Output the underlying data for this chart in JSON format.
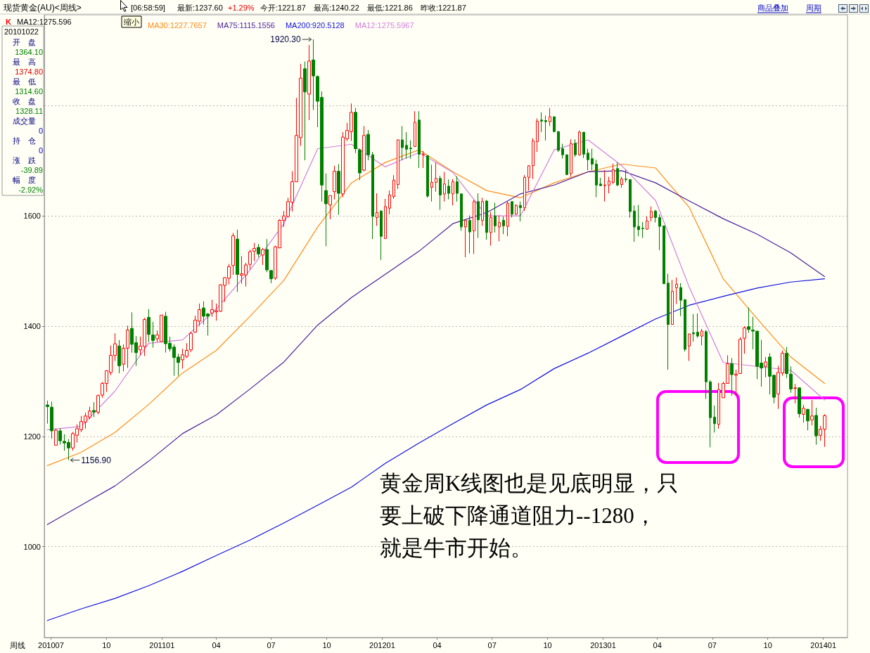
{
  "chart_data": {
    "type": "candlestick",
    "title": "现货黄金(AU)<周线>",
    "xlim": [
      "2010-06-20",
      "2014-02-10"
    ],
    "ylim": [
      835,
      1965
    ],
    "xticks": [
      {
        "value": "2010-07-01",
        "label": "201007"
      },
      {
        "value": "2010-10-01",
        "label": "10"
      },
      {
        "value": "2011-01-01",
        "label": "201101"
      },
      {
        "value": "2011-04-01",
        "label": "04"
      },
      {
        "value": "2011-07-01",
        "label": "07"
      },
      {
        "value": "2011-10-01",
        "label": "10"
      },
      {
        "value": "2012-01-01",
        "label": "201201"
      },
      {
        "value": "2012-04-01",
        "label": "04"
      },
      {
        "value": "2012-07-01",
        "label": "07"
      },
      {
        "value": "2012-10-01",
        "label": "10"
      },
      {
        "value": "2013-01-01",
        "label": "201301"
      },
      {
        "value": "2013-04-01",
        "label": "04"
      },
      {
        "value": "2013-07-01",
        "label": "07"
      },
      {
        "value": "2013-10-01",
        "label": "10"
      },
      {
        "value": "2014-01-01",
        "label": "201401"
      }
    ],
    "yticks": [
      1000,
      1200,
      1400,
      1600,
      {
        "value": 1800,
        "label": null
      }
    ],
    "grid": "y",
    "legend": "top left",
    "annotations": [
      "[06:58:59]",
      "最新:1237.60",
      "+1.29%",
      "今开:1221.87",
      "最高:1240.22",
      "最低:1221.86",
      "昨收:1221.87",
      "商品叠加",
      "周期",
      "MA12:1275.596",
      "缩小",
      "20101022",
      "开　盘",
      "1364.10",
      "最　高",
      "1374.80",
      "最　低",
      "1314.60",
      "收　盘",
      "1328.11",
      "成交量",
      "0",
      "持　仓",
      "0",
      "涨　跌",
      "-39.89",
      "幅　度",
      "-2.92%",
      "周线",
      "黄金周K线图也是见底明显，只",
      "要上破下降通道阻力--1280，",
      "就是牛市开始。",
      {
        "text": "1920.30",
        "x": "2011-09-09",
        "y": 1920.3
      },
      {
        "text": "1156.90",
        "x": "2010-07-30",
        "y": 1156.9
      }
    ],
    "series": [
      {
        "name": "K",
        "colors": [
          "#008000",
          "#008000",
          "#ff0000",
          "#008000",
          "#008000",
          "#008000",
          "#ff0000",
          "#ff0000",
          "#ff0000",
          "#ff0000",
          "#ff0000",
          "#008000",
          "#ff0000",
          "#ff0000",
          "#ff0000",
          "#ff0000",
          "#ff0000",
          "#008000",
          "#ff0000",
          "#ff0000",
          "#008000",
          "#008000",
          "#ff0000",
          "#ff0000",
          "#008000",
          "#008000",
          "#ff0000",
          "#ff0000",
          "#008000",
          "#008000",
          "#008000",
          "#008000",
          "#ff0000",
          "#ff0000",
          "#ff0000",
          "#ff0000",
          "#ff0000",
          "#008000",
          "#008000",
          "#ff0000",
          "#ff0000",
          "#ff0000",
          "#ff0000",
          "#ff0000",
          "#ff0000",
          "#008000",
          "#ff0000",
          "#ff0000",
          "#ff0000",
          "#ff0000",
          "#008000",
          "#ff0000",
          "#008000",
          "#008000",
          "#ff0000",
          "#ff0000",
          "#ff0000",
          "#ff0000",
          "#ff0000",
          "#ff0000",
          "#ff0000",
          "#008000",
          "#ff0000",
          "#008000",
          "#008000",
          "#008000",
          "#008000",
          "#ff0000",
          "#ff0000",
          "#008000",
          "#ff0000",
          "#ff0000",
          "#ff0000",
          "#008000",
          "#008000",
          "#ff0000",
          "#008000",
          "#008000",
          "#ff0000",
          "#008000",
          "#ff0000",
          "#ff0000",
          "#ff0000",
          "#ff0000",
          "#008000",
          "#008000",
          "#008000",
          "#ff0000",
          "#008000",
          "#ff0000",
          "#008000",
          "#ff0000",
          "#ff0000",
          "#008000",
          "#ff0000",
          "#008000",
          "#ff0000",
          "#008000",
          "#008000",
          "#ff0000",
          "#008000",
          "#ff0000",
          "#008000",
          "#ff0000",
          "#008000",
          "#ff0000",
          "#008000",
          "#ff0000",
          "#008000",
          "#ff0000",
          "#008000",
          "#ff0000",
          "#008000",
          "#ff0000",
          "#ff0000",
          "#ff0000",
          "#ff0000",
          "#008000",
          "#008000",
          "#ff0000",
          "#008000",
          "#008000",
          "#008000",
          "#008000",
          "#ff0000",
          "#008000",
          "#ff0000",
          "#008000",
          "#008000",
          "#008000",
          "#008000",
          "#008000",
          "#ff0000",
          "#ff0000",
          "#ff0000",
          "#008000",
          "#ff0000",
          "#008000",
          "#008000",
          "#008000",
          "#008000",
          "#008000",
          "#ff0000",
          "#ff0000",
          "#008000",
          "#008000",
          "#008000",
          "#008000",
          "#ff0000",
          "#ff0000",
          "#008000",
          "#008000",
          "#ff0000",
          "#008000",
          "#008000",
          "#ff0000",
          "#008000",
          "#008000",
          "#008000",
          "#ff0000",
          "#ff0000",
          "#ff0000",
          "#008000",
          "#ff0000",
          "#ff0000",
          "#ff0000",
          "#008000",
          "#008000",
          "#008000",
          "#008000",
          "#ff0000",
          "#008000",
          "#008000",
          "#ff0000",
          "#ff0000",
          "#008000",
          "#008000",
          "#ff0000",
          "#008000",
          "#ff0000",
          "#008000",
          "#ff0000",
          "#008000",
          "#ff0000",
          "#ff0000"
        ],
        "x": [
          "2010-06-25",
          "2010-07-02",
          "2010-07-09",
          "2010-07-16",
          "2010-07-23",
          "2010-07-30",
          "2010-08-06",
          "2010-08-13",
          "2010-08-20",
          "2010-08-27",
          "2010-09-03",
          "2010-09-10",
          "2010-09-17",
          "2010-09-24",
          "2010-10-01",
          "2010-10-08",
          "2010-10-15",
          "2010-10-22",
          "2010-10-29",
          "2010-11-05",
          "2010-11-12",
          "2010-11-19",
          "2010-11-26",
          "2010-12-03",
          "2010-12-10",
          "2010-12-17",
          "2010-12-24",
          "2010-12-31",
          "2011-01-07",
          "2011-01-14",
          "2011-01-21",
          "2011-01-28",
          "2011-02-04",
          "2011-02-11",
          "2011-02-18",
          "2011-02-25",
          "2011-03-04",
          "2011-03-11",
          "2011-03-18",
          "2011-03-25",
          "2011-04-01",
          "2011-04-08",
          "2011-04-15",
          "2011-04-22",
          "2011-04-29",
          "2011-05-06",
          "2011-05-13",
          "2011-05-20",
          "2011-05-27",
          "2011-06-03",
          "2011-06-10",
          "2011-06-17",
          "2011-06-24",
          "2011-07-01",
          "2011-07-08",
          "2011-07-15",
          "2011-07-22",
          "2011-07-29",
          "2011-08-05",
          "2011-08-12",
          "2011-08-19",
          "2011-08-26",
          "2011-09-02",
          "2011-09-09",
          "2011-09-16",
          "2011-09-23",
          "2011-09-30",
          "2011-10-07",
          "2011-10-14",
          "2011-10-21",
          "2011-10-28",
          "2011-11-04",
          "2011-11-11",
          "2011-11-18",
          "2011-11-25",
          "2011-12-02",
          "2011-12-09",
          "2011-12-16",
          "2011-12-23",
          "2011-12-30",
          "2012-01-06",
          "2012-01-13",
          "2012-01-20",
          "2012-01-27",
          "2012-02-03",
          "2012-02-10",
          "2012-02-17",
          "2012-02-24",
          "2012-03-02",
          "2012-03-09",
          "2012-03-16",
          "2012-03-23",
          "2012-03-30",
          "2012-04-06",
          "2012-04-13",
          "2012-04-20",
          "2012-04-27",
          "2012-05-04",
          "2012-05-11",
          "2012-05-18",
          "2012-05-25",
          "2012-06-01",
          "2012-06-08",
          "2012-06-15",
          "2012-06-22",
          "2012-06-29",
          "2012-07-06",
          "2012-07-13",
          "2012-07-20",
          "2012-07-27",
          "2012-08-03",
          "2012-08-10",
          "2012-08-17",
          "2012-08-24",
          "2012-08-31",
          "2012-09-07",
          "2012-09-14",
          "2012-09-21",
          "2012-09-28",
          "2012-10-05",
          "2012-10-12",
          "2012-10-19",
          "2012-10-26",
          "2012-11-02",
          "2012-11-09",
          "2012-11-16",
          "2012-11-23",
          "2012-11-30",
          "2012-12-07",
          "2012-12-14",
          "2012-12-21",
          "2012-12-28",
          "2013-01-04",
          "2013-01-11",
          "2013-01-18",
          "2013-01-25",
          "2013-02-01",
          "2013-02-08",
          "2013-02-15",
          "2013-02-22",
          "2013-03-01",
          "2013-03-08",
          "2013-03-15",
          "2013-03-22",
          "2013-03-29",
          "2013-04-05",
          "2013-04-12",
          "2013-04-19",
          "2013-04-26",
          "2013-05-03",
          "2013-05-10",
          "2013-05-17",
          "2013-05-24",
          "2013-05-31",
          "2013-06-07",
          "2013-06-14",
          "2013-06-21",
          "2013-06-28",
          "2013-07-05",
          "2013-07-12",
          "2013-07-19",
          "2013-07-26",
          "2013-08-02",
          "2013-08-09",
          "2013-08-16",
          "2013-08-23",
          "2013-08-30",
          "2013-09-06",
          "2013-09-13",
          "2013-09-20",
          "2013-09-27",
          "2013-10-04",
          "2013-10-11",
          "2013-10-18",
          "2013-10-25",
          "2013-11-01",
          "2013-11-08",
          "2013-11-15",
          "2013-11-22",
          "2013-11-29",
          "2013-12-06",
          "2013-12-13",
          "2013-12-20",
          "2013-12-27",
          "2014-01-03"
        ],
        "ohlc": [
          [
            1257,
            1265,
            1223,
            1254
          ],
          [
            1253,
            1263,
            1196,
            1210
          ],
          [
            1184,
            1214,
            1184,
            1211
          ],
          [
            1210,
            1215,
            1185,
            1192
          ],
          [
            1191,
            1204,
            1174,
            1188
          ],
          [
            1189,
            1195,
            1156.9,
            1179
          ],
          [
            1179,
            1208,
            1174,
            1205
          ],
          [
            1202,
            1222,
            1189,
            1214
          ],
          [
            1212,
            1237,
            1208,
            1227
          ],
          [
            1226,
            1243,
            1214,
            1237
          ],
          [
            1235,
            1254,
            1231,
            1246
          ],
          [
            1247,
            1262,
            1235,
            1244
          ],
          [
            1244,
            1276,
            1240,
            1274
          ],
          [
            1275,
            1299,
            1270,
            1296
          ],
          [
            1296,
            1320,
            1281,
            1319
          ],
          [
            1316,
            1365,
            1311,
            1347
          ],
          [
            1347,
            1387,
            1337,
            1368
          ],
          [
            1364.1,
            1374.8,
            1314.6,
            1328.11
          ],
          [
            1331,
            1367,
            1318,
            1360
          ],
          [
            1360,
            1401,
            1324,
            1393
          ],
          [
            1396,
            1425,
            1352,
            1367
          ],
          [
            1370,
            1382,
            1328,
            1352
          ],
          [
            1357,
            1381,
            1347,
            1364
          ],
          [
            1363,
            1415,
            1346,
            1412
          ],
          [
            1416,
            1431,
            1371,
            1385
          ],
          [
            1384,
            1408,
            1361,
            1374
          ],
          [
            1377,
            1392,
            1371,
            1384
          ],
          [
            1372,
            1420,
            1372,
            1420
          ],
          [
            1418,
            1426,
            1352,
            1368
          ],
          [
            1369,
            1381,
            1354,
            1359
          ],
          [
            1362,
            1367,
            1310,
            1343
          ],
          [
            1344,
            1350,
            1310,
            1334
          ],
          [
            1339,
            1359,
            1323,
            1348
          ],
          [
            1345,
            1369,
            1342,
            1356
          ],
          [
            1357,
            1390,
            1353,
            1387
          ],
          [
            1389,
            1419,
            1388,
            1411
          ],
          [
            1409,
            1441,
            1401,
            1430
          ],
          [
            1433,
            1445,
            1403,
            1418
          ],
          [
            1422,
            1424,
            1383,
            1418
          ],
          [
            1424,
            1448,
            1417,
            1430
          ],
          [
            1426,
            1441,
            1410,
            1428
          ],
          [
            1427,
            1476,
            1426,
            1475
          ],
          [
            1474,
            1489,
            1444,
            1488
          ],
          [
            1487,
            1513,
            1476,
            1508
          ],
          [
            1510,
            1569,
            1493,
            1564
          ],
          [
            1558,
            1575,
            1462,
            1494
          ],
          [
            1492,
            1527,
            1477,
            1495
          ],
          [
            1493,
            1515,
            1472,
            1511
          ],
          [
            1512,
            1539,
            1503,
            1535
          ],
          [
            1536,
            1551,
            1518,
            1541
          ],
          [
            1543,
            1549,
            1525,
            1531
          ],
          [
            1529,
            1542,
            1511,
            1539
          ],
          [
            1539,
            1558,
            1498,
            1502
          ],
          [
            1501,
            1501,
            1478,
            1486
          ],
          [
            1487,
            1546,
            1484,
            1544
          ],
          [
            1542,
            1594,
            1542,
            1592
          ],
          [
            1592,
            1609,
            1580,
            1600
          ],
          [
            1599,
            1633,
            1597,
            1626
          ],
          [
            1625,
            1681,
            1608,
            1662
          ],
          [
            1662,
            1814,
            1662,
            1746
          ],
          [
            1742,
            1876,
            1727,
            1850
          ],
          [
            1867,
            1880,
            1701,
            1825
          ],
          [
            1821,
            1910,
            1774,
            1881
          ],
          [
            1883,
            1920.3,
            1792,
            1854
          ],
          [
            1853,
            1855,
            1761,
            1808
          ],
          [
            1815,
            1826,
            1626,
            1656
          ],
          [
            1646,
            1677,
            1545,
            1622
          ],
          [
            1620,
            1637,
            1594,
            1637
          ],
          [
            1644,
            1691,
            1630,
            1681
          ],
          [
            1681,
            1694,
            1602,
            1641
          ],
          [
            1640,
            1752,
            1634,
            1743
          ],
          [
            1740,
            1769,
            1736,
            1755
          ],
          [
            1753,
            1804,
            1736,
            1788
          ],
          [
            1788,
            1796,
            1714,
            1722
          ],
          [
            1720,
            1722,
            1665,
            1678
          ],
          [
            1683,
            1763,
            1681,
            1746
          ],
          [
            1748,
            1756,
            1701,
            1711
          ],
          [
            1711,
            1716,
            1558,
            1599
          ],
          [
            1597,
            1641,
            1582,
            1606
          ],
          [
            1609,
            1610,
            1520,
            1563
          ],
          [
            1559,
            1631,
            1559,
            1617
          ],
          [
            1614,
            1646,
            1603,
            1638
          ],
          [
            1635,
            1674,
            1631,
            1665
          ],
          [
            1657,
            1739,
            1649,
            1738
          ],
          [
            1738,
            1763,
            1701,
            1724
          ],
          [
            1728,
            1752,
            1704,
            1721
          ],
          [
            1723,
            1737,
            1704,
            1722
          ],
          [
            1726,
            1790,
            1725,
            1770
          ],
          [
            1774,
            1790,
            1687,
            1712
          ],
          [
            1711,
            1718,
            1687,
            1712
          ],
          [
            1709,
            1711,
            1633,
            1636
          ],
          [
            1652,
            1693,
            1626,
            1661
          ],
          [
            1661,
            1697,
            1644,
            1668
          ],
          [
            1668,
            1673,
            1611,
            1638
          ],
          [
            1640,
            1680,
            1626,
            1658
          ],
          [
            1654,
            1666,
            1630,
            1641
          ],
          [
            1640,
            1667,
            1619,
            1662
          ],
          [
            1662,
            1672,
            1626,
            1641
          ],
          [
            1640,
            1640,
            1573,
            1580
          ],
          [
            1580,
            1593,
            1525,
            1592
          ],
          [
            1592,
            1601,
            1532,
            1571
          ],
          [
            1573,
            1629,
            1531,
            1626
          ],
          [
            1626,
            1641,
            1560,
            1593
          ],
          [
            1592,
            1633,
            1582,
            1626
          ],
          [
            1627,
            1629,
            1557,
            1570
          ],
          [
            1570,
            1607,
            1546,
            1597
          ],
          [
            1600,
            1624,
            1570,
            1582
          ],
          [
            1580,
            1601,
            1554,
            1588
          ],
          [
            1592,
            1599,
            1567,
            1582
          ],
          [
            1581,
            1626,
            1563,
            1623
          ],
          [
            1626,
            1626,
            1597,
            1603
          ],
          [
            1603,
            1621,
            1602,
            1619
          ],
          [
            1619,
            1626,
            1590,
            1615
          ],
          [
            1615,
            1674,
            1609,
            1670
          ],
          [
            1670,
            1692,
            1646,
            1691
          ],
          [
            1691,
            1741,
            1667,
            1736
          ],
          [
            1735,
            1777,
            1716,
            1772
          ],
          [
            1774,
            1788,
            1752,
            1772
          ],
          [
            1773,
            1782,
            1737,
            1771
          ],
          [
            1771,
            1796,
            1763,
            1780
          ],
          [
            1780,
            1780,
            1752,
            1753
          ],
          [
            1753,
            1754,
            1716,
            1719
          ],
          [
            1722,
            1731,
            1704,
            1711
          ],
          [
            1711,
            1711,
            1674,
            1675
          ],
          [
            1677,
            1739,
            1671,
            1731
          ],
          [
            1732,
            1739,
            1707,
            1711
          ],
          [
            1711,
            1755,
            1709,
            1752
          ],
          [
            1752,
            1752,
            1705,
            1712
          ],
          [
            1714,
            1722,
            1683,
            1702
          ],
          [
            1704,
            1722,
            1683,
            1694
          ],
          [
            1694,
            1702,
            1634,
            1656
          ],
          [
            1658,
            1669,
            1654,
            1655
          ],
          [
            1655,
            1683,
            1626,
            1656
          ],
          [
            1656,
            1671,
            1641,
            1663
          ],
          [
            1661,
            1695,
            1658,
            1684
          ],
          [
            1686,
            1697,
            1654,
            1656
          ],
          [
            1657,
            1671,
            1651,
            1667
          ],
          [
            1667,
            1684,
            1661,
            1666
          ],
          [
            1666,
            1666,
            1597,
            1608
          ],
          [
            1609,
            1619,
            1553,
            1580
          ],
          [
            1581,
            1620,
            1563,
            1575
          ],
          [
            1578,
            1589,
            1560,
            1577
          ],
          [
            1576,
            1599,
            1575,
            1591
          ],
          [
            1597,
            1617,
            1590,
            1608
          ],
          [
            1609,
            1611,
            1588,
            1597
          ],
          [
            1597,
            1603,
            1538,
            1581
          ],
          [
            1582,
            1582,
            1477,
            1477
          ],
          [
            1478,
            1495,
            1321,
            1403
          ],
          [
            1403,
            1484,
            1403,
            1463
          ],
          [
            1470,
            1488,
            1440,
            1476
          ],
          [
            1470,
            1478,
            1418,
            1447
          ],
          [
            1448,
            1449,
            1354,
            1358
          ],
          [
            1364,
            1386,
            1337,
            1386
          ],
          [
            1388,
            1422,
            1372,
            1386
          ],
          [
            1389,
            1423,
            1379,
            1382
          ],
          [
            1382,
            1395,
            1365,
            1391
          ],
          [
            1390,
            1393,
            1268,
            1299
          ],
          [
            1299,
            1302,
            1180,
            1234
          ],
          [
            1235,
            1256,
            1207,
            1223
          ],
          [
            1222,
            1297,
            1214,
            1285
          ],
          [
            1270,
            1299,
            1270,
            1296
          ],
          [
            1296,
            1347,
            1296,
            1332
          ],
          [
            1332,
            1342,
            1274,
            1312
          ],
          [
            1311,
            1321,
            1274,
            1313
          ],
          [
            1314,
            1380,
            1314,
            1376
          ],
          [
            1378,
            1400,
            1350,
            1397
          ],
          [
            1399,
            1434,
            1388,
            1394
          ],
          [
            1393,
            1417,
            1358,
            1391
          ],
          [
            1391,
            1391,
            1304,
            1327
          ],
          [
            1333,
            1375,
            1290,
            1324
          ],
          [
            1327,
            1344,
            1307,
            1335
          ],
          [
            1344,
            1351,
            1276,
            1309
          ],
          [
            1311,
            1311,
            1260,
            1271
          ],
          [
            1277,
            1328,
            1250,
            1316
          ],
          [
            1315,
            1356,
            1310,
            1351
          ],
          [
            1351,
            1362,
            1306,
            1314
          ],
          [
            1313,
            1327,
            1279,
            1286
          ],
          [
            1287,
            1295,
            1260,
            1288
          ],
          [
            1288,
            1289,
            1234,
            1241
          ],
          [
            1240,
            1257,
            1225,
            1251
          ],
          [
            1249,
            1250,
            1211,
            1228
          ],
          [
            1230,
            1266,
            1220,
            1237
          ],
          [
            1238,
            1252,
            1185,
            1201
          ],
          [
            1202,
            1219,
            1192,
            1213
          ],
          [
            1213,
            1240.22,
            1181,
            1237.6
          ]
        ]
      },
      {
        "name": "MA30:1227.7657",
        "type": "line",
        "color": "#ff8c1a",
        "x": [
          "2010-06-25",
          "2010-08-20",
          "2010-10-15",
          "2010-12-10",
          "2011-02-04",
          "2011-04-01",
          "2011-05-27",
          "2011-07-22",
          "2011-09-16",
          "2011-11-11",
          "2012-01-06",
          "2012-03-02",
          "2012-04-27",
          "2012-06-22",
          "2012-08-17",
          "2012-10-12",
          "2012-12-07",
          "2013-02-01",
          "2013-03-29",
          "2013-05-24",
          "2013-07-19",
          "2013-09-13",
          "2013-11-08",
          "2014-01-03"
        ],
        "values": [
          1147,
          1171,
          1207,
          1258,
          1315,
          1356,
          1418,
          1483,
          1580,
          1660,
          1697,
          1720,
          1680,
          1646,
          1633,
          1660,
          1680,
          1694,
          1687,
          1615,
          1486,
          1414,
          1344,
          1296
        ]
      },
      {
        "name": "MA75:1115.1556",
        "type": "line",
        "color": "#4b1f9e",
        "x": [
          "2010-06-25",
          "2010-08-20",
          "2010-10-15",
          "2010-12-10",
          "2011-02-04",
          "2011-04-01",
          "2011-05-27",
          "2011-07-22",
          "2011-09-16",
          "2011-11-11",
          "2012-01-06",
          "2012-03-02",
          "2012-04-27",
          "2012-06-22",
          "2012-08-17",
          "2012-10-12",
          "2012-12-07",
          "2013-02-01",
          "2013-03-29",
          "2013-05-24",
          "2013-07-19",
          "2013-09-13",
          "2013-11-08",
          "2014-01-03"
        ],
        "values": [
          1040,
          1075,
          1110,
          1155,
          1205,
          1239,
          1286,
          1335,
          1402,
          1452,
          1494,
          1536,
          1586,
          1606,
          1640,
          1656,
          1680,
          1682,
          1660,
          1627,
          1595,
          1567,
          1533,
          1490
        ]
      },
      {
        "name": "MA200:920.5128",
        "type": "line",
        "color": "#1010e0",
        "x": [
          "2010-06-25",
          "2010-08-20",
          "2010-10-15",
          "2010-12-10",
          "2011-02-04",
          "2011-04-01",
          "2011-05-27",
          "2011-07-22",
          "2011-09-16",
          "2011-11-11",
          "2012-01-06",
          "2012-03-02",
          "2012-04-27",
          "2012-06-22",
          "2012-08-17",
          "2012-10-12",
          "2012-12-07",
          "2013-02-01",
          "2013-03-29",
          "2013-05-24",
          "2013-07-19",
          "2013-09-13",
          "2013-11-08",
          "2014-01-03"
        ],
        "values": [
          866,
          887,
          906,
          929,
          955,
          984,
          1012,
          1043,
          1075,
          1108,
          1151,
          1188,
          1223,
          1257,
          1285,
          1323,
          1351,
          1382,
          1413,
          1438,
          1454,
          1469,
          1480,
          1486
        ]
      },
      {
        "name": "MA12:1275.5967",
        "type": "line",
        "color": "#d27ee0",
        "x": [
          "2010-06-25",
          "2010-08-20",
          "2010-10-15",
          "2010-12-10",
          "2011-02-04",
          "2011-04-01",
          "2011-05-27",
          "2011-07-22",
          "2011-09-16",
          "2011-11-11",
          "2012-01-06",
          "2012-03-02",
          "2012-04-27",
          "2012-06-22",
          "2012-08-17",
          "2012-10-12",
          "2012-12-07",
          "2013-02-01",
          "2013-03-29",
          "2013-05-24",
          "2013-07-19",
          "2013-09-13",
          "2013-11-08",
          "2014-01-03"
        ],
        "values": [
          1212,
          1218,
          1282,
          1369,
          1375,
          1431,
          1502,
          1586,
          1722,
          1730,
          1689,
          1715,
          1679,
          1600,
          1600,
          1720,
          1738,
          1691,
          1628,
          1470,
          1334,
          1327,
          1320,
          1266
        ]
      }
    ]
  }
}
